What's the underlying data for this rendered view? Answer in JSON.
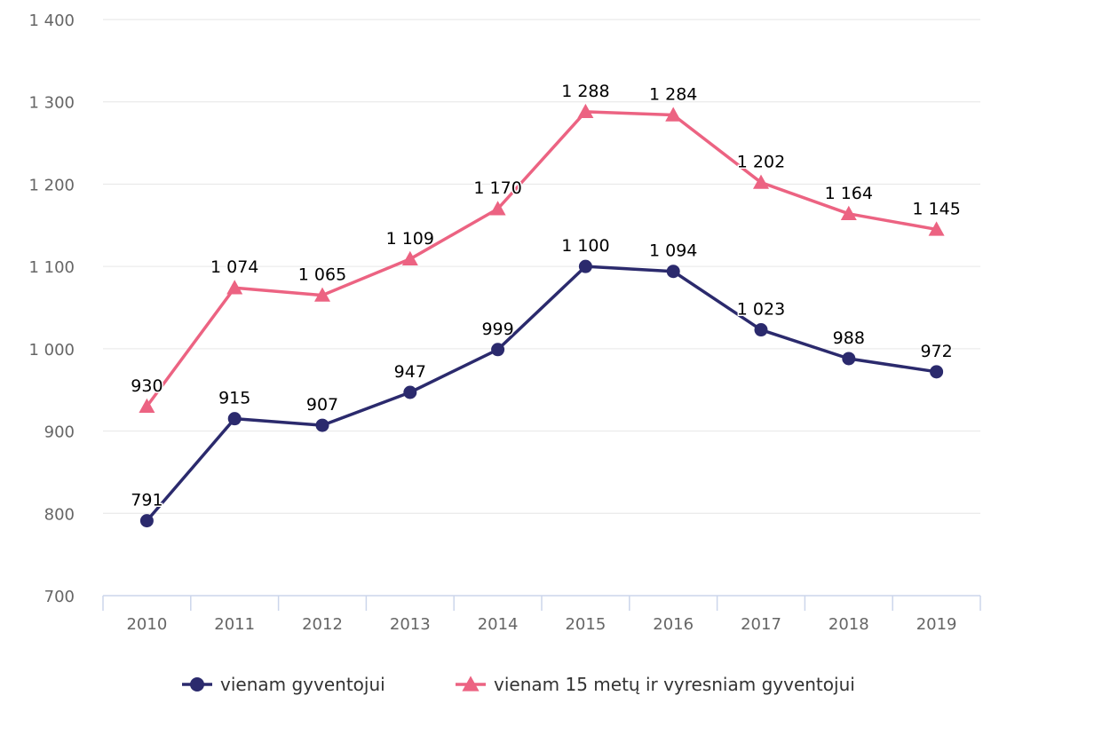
{
  "chart_data": {
    "type": "line",
    "title": "",
    "xlabel": "",
    "ylabel": "",
    "categories": [
      "2010",
      "2011",
      "2012",
      "2013",
      "2014",
      "2015",
      "2016",
      "2017",
      "2018",
      "2019"
    ],
    "ylim": [
      700,
      1400
    ],
    "yticks": [
      700,
      800,
      900,
      1000,
      1100,
      1200,
      1300,
      1400
    ],
    "ytick_labels": [
      "700",
      "800",
      "900",
      "1 000",
      "1 100",
      "1 200",
      "1 300",
      "1 400"
    ],
    "grid": true,
    "legend_position": "bottom",
    "series": [
      {
        "name": "vienam gyventojui",
        "marker": "circle",
        "color": "#2b2a6d",
        "values": [
          791,
          915,
          907,
          947,
          999,
          1100,
          1094,
          1023,
          988,
          972
        ],
        "labels": [
          "791",
          "915",
          "907",
          "947",
          "999",
          "1 100",
          "1 094",
          "1 023",
          "988",
          "972"
        ]
      },
      {
        "name": "vienam 15 metų ir vyresniam gyventojui",
        "marker": "triangle",
        "color": "#ec6382",
        "values": [
          930,
          1074,
          1065,
          1109,
          1170,
          1288,
          1284,
          1202,
          1164,
          1145
        ],
        "labels": [
          "930",
          "1 074",
          "1 065",
          "1 109",
          "1 170",
          "1 288",
          "1 284",
          "1 202",
          "1 164",
          "1 145"
        ]
      }
    ]
  }
}
